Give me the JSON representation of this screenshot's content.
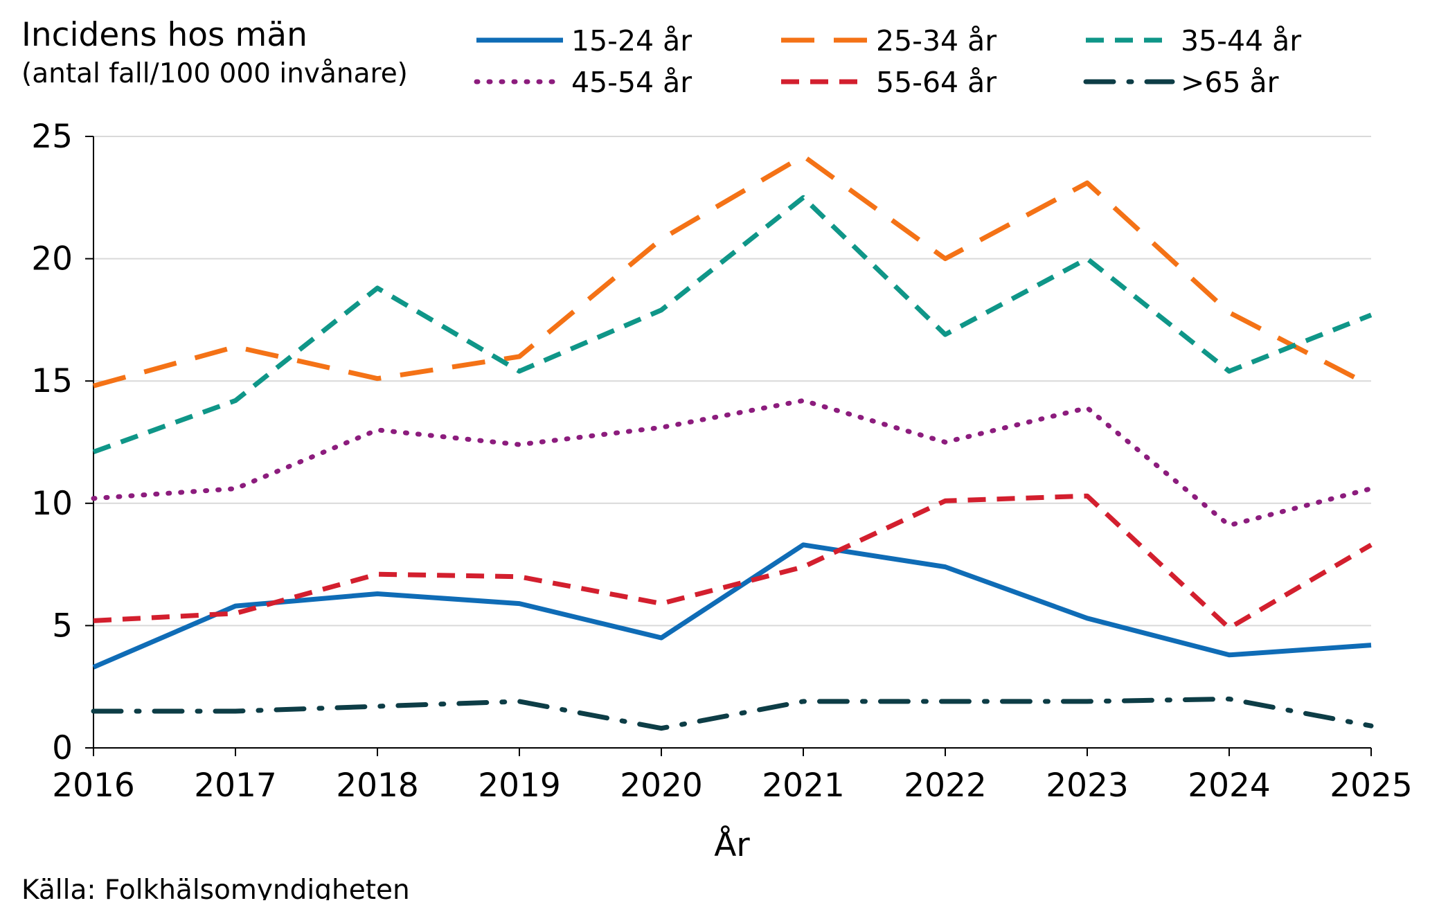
{
  "chart_data": {
    "type": "line",
    "title": "Incidens hos män",
    "subtitle": "(antal fall/100 000 invånare)",
    "xlabel": "År",
    "ylabel": "",
    "source": "Källa: Folkhälsomyndigheten",
    "x": [
      "2016",
      "2017",
      "2018",
      "2019",
      "2020",
      "2021",
      "2022",
      "2023",
      "2024",
      "2025"
    ],
    "ylim": [
      0,
      25
    ],
    "yticks": [
      "0",
      "5",
      "10",
      "15",
      "20",
      "25"
    ],
    "grid": "horizontal",
    "legend_position": "top",
    "series": [
      {
        "name": "15-24 år",
        "color": "#0f6cb6",
        "style": "solid",
        "values": [
          3.3,
          5.8,
          6.3,
          5.9,
          4.5,
          8.3,
          7.4,
          5.3,
          3.8,
          4.2
        ]
      },
      {
        "name": "25-34 år",
        "color": "#f47216",
        "style": "long-dash",
        "values": [
          14.8,
          16.4,
          15.1,
          16.0,
          20.8,
          24.2,
          20.0,
          23.1,
          17.8,
          14.8
        ]
      },
      {
        "name": "35-44 år",
        "color": "#0f9688",
        "style": "dash",
        "values": [
          12.1,
          14.2,
          18.8,
          15.4,
          17.9,
          22.5,
          16.9,
          20.0,
          15.4,
          17.7
        ]
      },
      {
        "name": "45-54 år",
        "color": "#8c1c7d",
        "style": "dot",
        "values": [
          10.2,
          10.6,
          13.0,
          12.4,
          13.1,
          14.2,
          12.5,
          13.9,
          9.1,
          10.6
        ]
      },
      {
        "name": "55-64 år",
        "color": "#d31f2e",
        "style": "dash",
        "values": [
          5.2,
          5.5,
          7.1,
          7.0,
          5.9,
          7.4,
          10.1,
          10.3,
          4.9,
          8.3
        ]
      },
      {
        "name": ">65 år",
        "color": "#0d3d46",
        "style": "dash-dot",
        "values": [
          1.5,
          1.5,
          1.7,
          1.9,
          0.8,
          1.9,
          1.9,
          1.9,
          2.0,
          0.9
        ]
      }
    ]
  }
}
